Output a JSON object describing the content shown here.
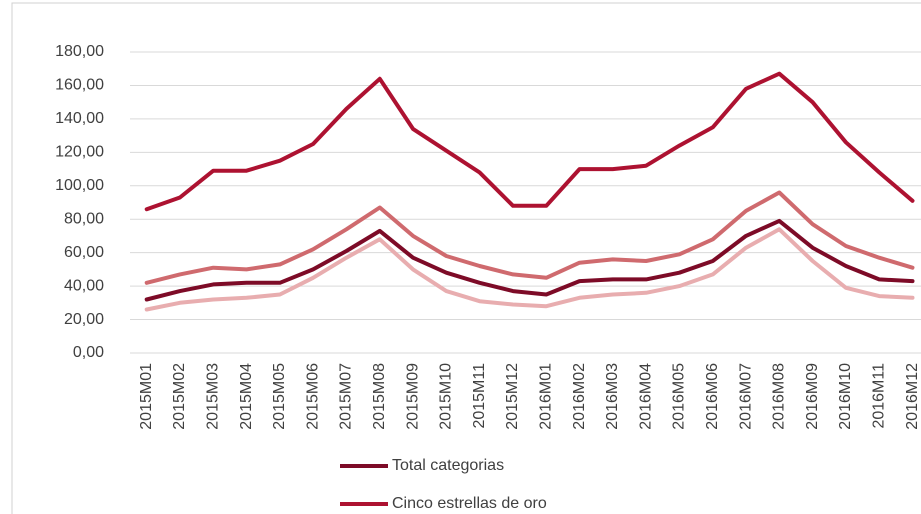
{
  "chart_data": {
    "type": "line",
    "categories": [
      "2015M01",
      "2015M02",
      "2015M03",
      "2015M04",
      "2015M05",
      "2015M06",
      "2015M07",
      "2015M08",
      "2015M09",
      "2015M10",
      "2015M11",
      "2015M12",
      "2016M01",
      "2016M02",
      "2016M03",
      "2016M04",
      "2016M05",
      "2016M06",
      "2016M07",
      "2016M08",
      "2016M09",
      "2016M10",
      "2016M11",
      "2016M12"
    ],
    "series": [
      {
        "name": "Total categorias",
        "color": "#7d0b27",
        "values": [
          32,
          37,
          41,
          42,
          42,
          50,
          61,
          73,
          57,
          48,
          42,
          37,
          35,
          43,
          44,
          44,
          48,
          55,
          70,
          79,
          63,
          52,
          44,
          43
        ]
      },
      {
        "name": "Cinco estrellas de oro",
        "color": "#ad1231",
        "values": [
          86,
          93,
          109,
          109,
          115,
          125,
          146,
          164,
          134,
          121,
          108,
          88,
          88,
          110,
          110,
          112,
          124,
          135,
          158,
          167,
          150,
          126,
          108,
          91
        ]
      },
      {
        "color": "#cf6a6e",
        "values": [
          42,
          47,
          51,
          50,
          53,
          62,
          74,
          87,
          70,
          58,
          52,
          47,
          45,
          54,
          56,
          55,
          59,
          68,
          85,
          96,
          77,
          64,
          57,
          51
        ]
      },
      {
        "color": "#e8adaf",
        "values": [
          26,
          30,
          32,
          33,
          35,
          45,
          57,
          68,
          50,
          37,
          31,
          29,
          28,
          33,
          35,
          36,
          40,
          47,
          63,
          74,
          55,
          39,
          34,
          33
        ]
      }
    ],
    "ylim": [
      0,
      180
    ],
    "yticks": [
      {
        "value": 0,
        "label": "0,00"
      },
      {
        "value": 20,
        "label": "20,00"
      },
      {
        "value": 40,
        "label": "40,00"
      },
      {
        "value": 60,
        "label": "60,00"
      },
      {
        "value": 80,
        "label": "80,00"
      },
      {
        "value": 100,
        "label": "100,00"
      },
      {
        "value": 120,
        "label": "120,00"
      },
      {
        "value": 140,
        "label": "140,00"
      },
      {
        "value": 160,
        "label": "160,00"
      },
      {
        "value": 180,
        "label": "180,00"
      }
    ],
    "grid": true
  }
}
